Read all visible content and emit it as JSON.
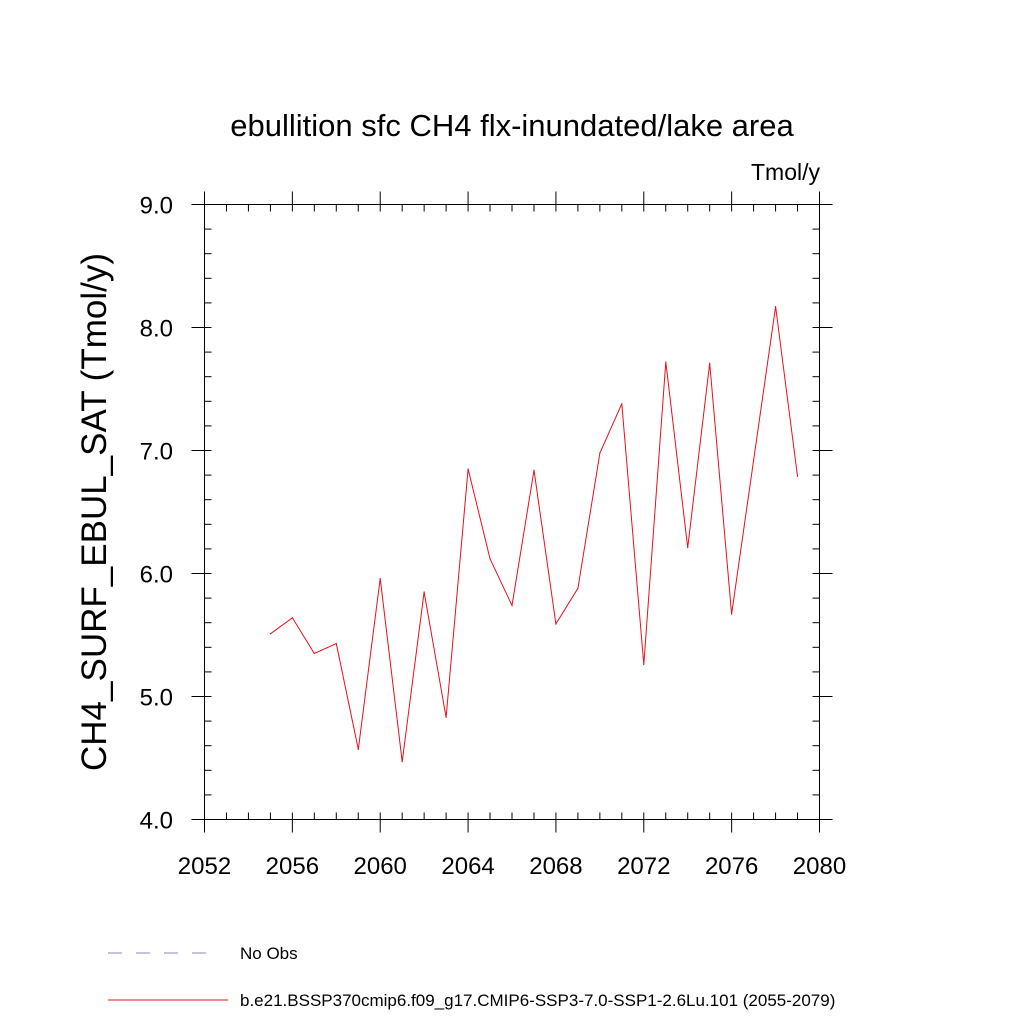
{
  "chart_data": {
    "type": "line",
    "title": "ebullition sfc CH4 flx-inundated/lake area",
    "units": "Tmol/y",
    "ylabel": "CH4_SURF_EBUL_SAT  (Tmol/y)",
    "xlabel": "",
    "xlim": [
      2052,
      2080
    ],
    "ylim": [
      4.0,
      9.0
    ],
    "x_ticks": [
      2052,
      2056,
      2060,
      2064,
      2068,
      2072,
      2076,
      2080
    ],
    "x_tick_labels": [
      "2052",
      "2056",
      "2060",
      "2064",
      "2068",
      "2072",
      "2076",
      "2080"
    ],
    "y_ticks": [
      4.0,
      5.0,
      6.0,
      7.0,
      8.0,
      9.0
    ],
    "y_tick_labels": [
      "4.0",
      "5.0",
      "6.0",
      "7.0",
      "8.0",
      "9.0"
    ],
    "grid": false,
    "legend_position": "bottom",
    "legend": [
      {
        "label": "No Obs",
        "style": "dashed",
        "color": "#8e86c0"
      },
      {
        "label": "b.e21.BSSP370cmip6.f09_g17.CMIP6-SSP3-7.0-SSP1-2.6Lu.101 (2055-2079)",
        "style": "solid",
        "color": "#e8101a"
      }
    ],
    "series": [
      {
        "name": "b.e21.BSSP370cmip6.f09_g17.CMIP6-SSP3-7.0-SSP1-2.6Lu.101 (2055-2079)",
        "color": "#e8101a",
        "x": [
          2055,
          2056,
          2057,
          2058,
          2059,
          2060,
          2061,
          2062,
          2063,
          2064,
          2065,
          2066,
          2067,
          2068,
          2069,
          2070,
          2071,
          2072,
          2073,
          2074,
          2075,
          2076,
          2077,
          2078,
          2079
        ],
        "y": [
          5.51,
          5.64,
          5.35,
          5.43,
          4.57,
          5.96,
          4.47,
          5.85,
          4.83,
          6.85,
          6.12,
          5.74,
          6.84,
          5.59,
          5.88,
          6.98,
          7.38,
          5.26,
          7.72,
          6.21,
          7.71,
          5.67,
          6.92,
          8.17,
          6.79
        ]
      }
    ]
  }
}
